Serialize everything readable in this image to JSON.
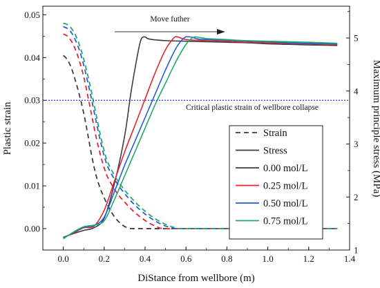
{
  "chart_data": {
    "type": "line",
    "xlabel": "DiStance from wellbore (m)",
    "ylabel_left": "Plastic strain",
    "ylabel_right": "Maximum principle stress (MPa)",
    "xlim": [
      -0.1,
      1.4
    ],
    "ylim_left": [
      -0.005,
      0.052
    ],
    "ylim_right": [
      1.0,
      5.6
    ],
    "x_ticks": [
      "0.0",
      "0.2",
      "0.4",
      "0.6",
      "0.8",
      "1.0",
      "1.2",
      "1.4"
    ],
    "y_left_ticks": [
      "0.00",
      "0.01",
      "0.02",
      "0.03",
      "0.04",
      "0.05"
    ],
    "y_right_ticks": [
      "1",
      "2",
      "3",
      "4",
      "5"
    ],
    "grid": false,
    "annotations": {
      "arrow_label": "Move futher",
      "critical_label": "Critical plastic strain of wellbore collapse",
      "critical_value": 0.03
    },
    "legend": {
      "placement": "bottom-right",
      "entries": [
        {
          "label": "Strain",
          "style": "dashed",
          "color": "#3c3c3c"
        },
        {
          "label": "Stress",
          "style": "solid",
          "color": "#3c3c3c"
        },
        {
          "label": "0.00 mol/L",
          "style": "solid",
          "color": "#3c3c3c"
        },
        {
          "label": "0.25 mol/L",
          "style": "solid",
          "color": "#e8232a"
        },
        {
          "label": "0.50 mol/L",
          "style": "solid",
          "color": "#1f5fd6"
        },
        {
          "label": "0.75 mol/L",
          "style": "solid",
          "color": "#1fa86b"
        }
      ]
    },
    "series": [
      {
        "name": "0.00 mol/L",
        "color": "#3c3c3c",
        "strain": [
          [
            0.0,
            0.0405
          ],
          [
            0.02,
            0.0395
          ],
          [
            0.04,
            0.0375
          ],
          [
            0.06,
            0.0345
          ],
          [
            0.08,
            0.031
          ],
          [
            0.1,
            0.027
          ],
          [
            0.12,
            0.022
          ],
          [
            0.14,
            0.0168
          ],
          [
            0.16,
            0.0125
          ],
          [
            0.18,
            0.0095
          ],
          [
            0.2,
            0.0072
          ],
          [
            0.22,
            0.0052
          ],
          [
            0.24,
            0.0035
          ],
          [
            0.26,
            0.0022
          ],
          [
            0.28,
            0.0012
          ],
          [
            0.3,
            0.0005
          ],
          [
            0.32,
            0.0001
          ],
          [
            0.34,
            0.0
          ],
          [
            0.4,
            0.0
          ],
          [
            0.6,
            0.0
          ],
          [
            1.0,
            0.0
          ],
          [
            1.34,
            0.0
          ]
        ],
        "stress": [
          [
            0.0,
            1.24
          ],
          [
            0.05,
            1.31
          ],
          [
            0.1,
            1.37
          ],
          [
            0.15,
            1.42
          ],
          [
            0.2,
            1.6
          ],
          [
            0.25,
            2.25
          ],
          [
            0.3,
            3.15
          ],
          [
            0.33,
            3.95
          ],
          [
            0.36,
            4.62
          ],
          [
            0.38,
            4.97
          ],
          [
            0.4,
            5.02
          ],
          [
            0.42,
            4.98
          ],
          [
            0.5,
            4.95
          ],
          [
            0.6,
            4.94
          ],
          [
            0.7,
            4.93
          ],
          [
            0.8,
            4.92
          ],
          [
            0.9,
            4.91
          ],
          [
            1.0,
            4.89
          ],
          [
            1.1,
            4.88
          ],
          [
            1.2,
            4.87
          ],
          [
            1.34,
            4.86
          ]
        ]
      },
      {
        "name": "0.25 mol/L",
        "color": "#e8232a",
        "strain": [
          [
            0.0,
            0.0455
          ],
          [
            0.02,
            0.045
          ],
          [
            0.04,
            0.0438
          ],
          [
            0.06,
            0.0418
          ],
          [
            0.08,
            0.039
          ],
          [
            0.1,
            0.0355
          ],
          [
            0.12,
            0.031
          ],
          [
            0.14,
            0.0262
          ],
          [
            0.16,
            0.0215
          ],
          [
            0.18,
            0.0175
          ],
          [
            0.2,
            0.0142
          ],
          [
            0.22,
            0.0117
          ],
          [
            0.26,
            0.0085
          ],
          [
            0.3,
            0.0062
          ],
          [
            0.34,
            0.0042
          ],
          [
            0.38,
            0.0026
          ],
          [
            0.42,
            0.0013
          ],
          [
            0.46,
            0.0004
          ],
          [
            0.49,
            0.0
          ],
          [
            0.6,
            0.0
          ],
          [
            1.0,
            0.0
          ],
          [
            1.34,
            0.0
          ]
        ],
        "stress": [
          [
            0.0,
            1.23
          ],
          [
            0.05,
            1.32
          ],
          [
            0.1,
            1.42
          ],
          [
            0.15,
            1.45
          ],
          [
            0.2,
            1.75
          ],
          [
            0.25,
            2.3
          ],
          [
            0.3,
            2.85
          ],
          [
            0.35,
            3.35
          ],
          [
            0.4,
            3.85
          ],
          [
            0.45,
            4.35
          ],
          [
            0.5,
            4.78
          ],
          [
            0.54,
            5.0
          ],
          [
            0.56,
            5.02
          ],
          [
            0.6,
            4.97
          ],
          [
            0.7,
            4.95
          ],
          [
            0.8,
            4.94
          ],
          [
            0.9,
            4.92
          ],
          [
            1.0,
            4.91
          ],
          [
            1.1,
            4.9
          ],
          [
            1.2,
            4.89
          ],
          [
            1.34,
            4.88
          ]
        ]
      },
      {
        "name": "0.50 mol/L",
        "color": "#1f5fd6",
        "strain": [
          [
            0.0,
            0.0472
          ],
          [
            0.02,
            0.0468
          ],
          [
            0.04,
            0.0458
          ],
          [
            0.06,
            0.044
          ],
          [
            0.08,
            0.0415
          ],
          [
            0.1,
            0.0382
          ],
          [
            0.12,
            0.0342
          ],
          [
            0.14,
            0.0298
          ],
          [
            0.16,
            0.0252
          ],
          [
            0.18,
            0.0208
          ],
          [
            0.2,
            0.017
          ],
          [
            0.22,
            0.0142
          ],
          [
            0.26,
            0.0108
          ],
          [
            0.3,
            0.0082
          ],
          [
            0.34,
            0.006
          ],
          [
            0.38,
            0.0042
          ],
          [
            0.42,
            0.0027
          ],
          [
            0.46,
            0.0015
          ],
          [
            0.5,
            0.0006
          ],
          [
            0.54,
            0.0001
          ],
          [
            0.56,
            0.0
          ],
          [
            0.7,
            0.0
          ],
          [
            1.0,
            0.0
          ],
          [
            1.34,
            0.0
          ]
        ],
        "stress": [
          [
            0.0,
            1.23
          ],
          [
            0.05,
            1.33
          ],
          [
            0.1,
            1.43
          ],
          [
            0.15,
            1.46
          ],
          [
            0.2,
            1.62
          ],
          [
            0.25,
            2.1
          ],
          [
            0.3,
            2.6
          ],
          [
            0.35,
            3.05
          ],
          [
            0.4,
            3.5
          ],
          [
            0.45,
            3.95
          ],
          [
            0.5,
            4.4
          ],
          [
            0.55,
            4.8
          ],
          [
            0.59,
            5.0
          ],
          [
            0.62,
            5.02
          ],
          [
            0.66,
            4.98
          ],
          [
            0.7,
            4.97
          ],
          [
            0.8,
            4.96
          ],
          [
            0.9,
            4.94
          ],
          [
            1.0,
            4.93
          ],
          [
            1.1,
            4.91
          ],
          [
            1.2,
            4.9
          ],
          [
            1.34,
            4.89
          ]
        ]
      },
      {
        "name": "0.75 mol/L",
        "color": "#1fa86b",
        "strain": [
          [
            0.0,
            0.048
          ],
          [
            0.02,
            0.0477
          ],
          [
            0.04,
            0.0468
          ],
          [
            0.06,
            0.0452
          ],
          [
            0.08,
            0.0428
          ],
          [
            0.1,
            0.0396
          ],
          [
            0.12,
            0.0358
          ],
          [
            0.14,
            0.0315
          ],
          [
            0.16,
            0.0268
          ],
          [
            0.18,
            0.0222
          ],
          [
            0.2,
            0.0182
          ],
          [
            0.22,
            0.0152
          ],
          [
            0.26,
            0.0117
          ],
          [
            0.3,
            0.009
          ],
          [
            0.34,
            0.0068
          ],
          [
            0.38,
            0.0049
          ],
          [
            0.42,
            0.0033
          ],
          [
            0.46,
            0.002
          ],
          [
            0.5,
            0.001
          ],
          [
            0.54,
            0.0003
          ],
          [
            0.57,
            0.0
          ],
          [
            0.7,
            0.0
          ],
          [
            1.0,
            0.0
          ],
          [
            1.34,
            0.0
          ]
        ],
        "stress": [
          [
            0.0,
            1.21
          ],
          [
            0.05,
            1.34
          ],
          [
            0.1,
            1.44
          ],
          [
            0.15,
            1.47
          ],
          [
            0.2,
            1.55
          ],
          [
            0.25,
            1.95
          ],
          [
            0.3,
            2.4
          ],
          [
            0.35,
            2.85
          ],
          [
            0.4,
            3.3
          ],
          [
            0.45,
            3.75
          ],
          [
            0.5,
            4.15
          ],
          [
            0.55,
            4.55
          ],
          [
            0.6,
            4.88
          ],
          [
            0.63,
            5.0
          ],
          [
            0.65,
            5.02
          ],
          [
            0.7,
            4.99
          ],
          [
            0.8,
            4.97
          ],
          [
            0.9,
            4.95
          ],
          [
            1.0,
            4.94
          ],
          [
            1.1,
            4.93
          ],
          [
            1.2,
            4.92
          ],
          [
            1.34,
            4.9
          ]
        ]
      }
    ]
  }
}
